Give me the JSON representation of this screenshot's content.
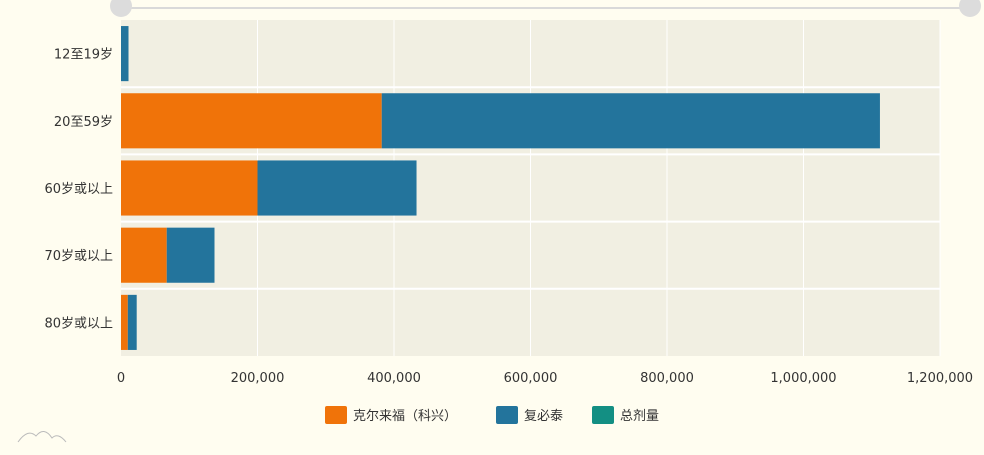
{
  "chart_data": {
    "type": "bar",
    "orientation": "horizontal",
    "stacked": true,
    "categories": [
      "12至19岁",
      "20至59岁",
      "60岁或以上",
      "70岁或以上",
      "80岁或以上"
    ],
    "series": [
      {
        "name": "克尔来福（科兴）",
        "color": "#f07309",
        "values": [
          0,
          382000,
          200000,
          67000,
          10000
        ]
      },
      {
        "name": "复必泰",
        "color": "#23749c",
        "values": [
          11000,
          730000,
          233000,
          70000,
          13000
        ]
      },
      {
        "name": "总剂量",
        "color": "#138f83",
        "values": [
          0,
          0,
          0,
          0,
          0
        ]
      }
    ],
    "xlim": [
      0,
      1200000
    ],
    "xticks": [
      0,
      200000,
      400000,
      600000,
      800000,
      1000000,
      1200000
    ],
    "xtick_labels": [
      "0",
      "200,000",
      "400,000",
      "600,000",
      "800,000",
      "1,000,000",
      "1,200,000"
    ],
    "grid": true,
    "legend_position": "bottom",
    "colors": {
      "page_background": "#fffdf0",
      "plot_background": "#f1efe2",
      "grid": "#ffffff"
    }
  }
}
